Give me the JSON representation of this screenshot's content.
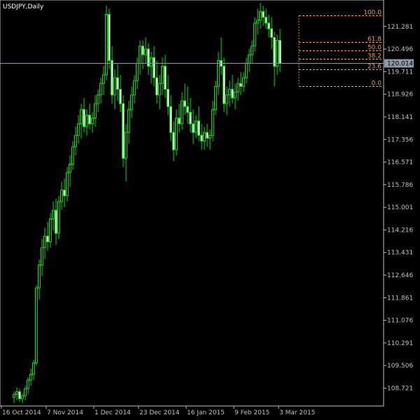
{
  "chart_data": {
    "type": "candlestick",
    "title": "USDJPY,Daily",
    "symbol": "USDJPY",
    "timeframe": "Daily",
    "ylim": [
      108.1,
      122.2
    ],
    "y_ticks": [
      "121.281",
      "120.496",
      "119.711",
      "118.926",
      "118.141",
      "117.356",
      "116.571",
      "115.786",
      "115.001",
      "114.216",
      "113.431",
      "112.646",
      "111.861",
      "111.076",
      "110.291",
      "109.506",
      "108.721"
    ],
    "x_ticks": [
      "16 Oct 2014",
      "7 Nov 2014",
      "1 Dec 2014",
      "23 Dec 2014",
      "16 Jan 2015",
      "9 Feb 2015",
      "3 Mar 2015"
    ],
    "current_price": "120.014",
    "fibonacci": {
      "levels": [
        {
          "label": "100.0",
          "value": 121.66
        },
        {
          "label": "61.8",
          "value": 120.73
        },
        {
          "label": "50.0",
          "value": 120.44
        },
        {
          "label": "38.2",
          "value": 120.15
        },
        {
          "label": "23.6",
          "value": 119.8
        },
        {
          "label": "0.0",
          "value": 119.22
        }
      ]
    },
    "ohlc": [
      [
        108.4,
        108.6,
        108.2,
        108.5
      ],
      [
        108.5,
        108.75,
        108.3,
        108.6
      ],
      [
        108.6,
        108.7,
        108.25,
        108.35
      ],
      [
        108.35,
        108.55,
        108.2,
        108.45
      ],
      [
        108.45,
        108.8,
        108.3,
        108.7
      ],
      [
        108.7,
        109.1,
        108.5,
        109.0
      ],
      [
        109.0,
        109.4,
        108.8,
        109.2
      ],
      [
        109.2,
        109.7,
        109.0,
        109.6
      ],
      [
        109.6,
        112.3,
        109.5,
        112.2
      ],
      [
        112.2,
        113.2,
        111.8,
        113.0
      ],
      [
        113.0,
        113.9,
        112.6,
        113.6
      ],
      [
        113.6,
        114.3,
        113.2,
        114.0
      ],
      [
        114.0,
        114.5,
        113.5,
        113.8
      ],
      [
        113.8,
        114.8,
        113.6,
        114.6
      ],
      [
        114.6,
        115.2,
        114.2,
        114.9
      ],
      [
        114.9,
        115.3,
        113.7,
        114.1
      ],
      [
        114.1,
        115.4,
        113.9,
        115.2
      ],
      [
        115.2,
        115.9,
        114.9,
        115.6
      ],
      [
        115.6,
        116.0,
        115.0,
        115.4
      ],
      [
        115.4,
        116.4,
        115.2,
        116.2
      ],
      [
        116.2,
        116.8,
        115.7,
        116.5
      ],
      [
        116.5,
        117.3,
        116.3,
        117.1
      ],
      [
        117.1,
        117.8,
        116.8,
        117.5
      ],
      [
        117.5,
        118.2,
        117.2,
        117.9
      ],
      [
        117.9,
        118.6,
        117.4,
        118.4
      ],
      [
        118.4,
        118.8,
        117.6,
        117.8
      ],
      [
        117.8,
        118.4,
        117.5,
        118.2
      ],
      [
        118.2,
        118.6,
        117.7,
        117.9
      ],
      [
        117.9,
        118.3,
        117.6,
        118.1
      ],
      [
        118.1,
        118.9,
        117.8,
        118.6
      ],
      [
        118.6,
        119.1,
        118.3,
        118.9
      ],
      [
        118.9,
        119.5,
        118.6,
        119.3
      ],
      [
        119.3,
        119.9,
        118.9,
        119.6
      ],
      [
        119.6,
        122.0,
        119.4,
        121.7
      ],
      [
        121.7,
        121.9,
        119.8,
        120.1
      ],
      [
        120.1,
        120.6,
        118.6,
        118.9
      ],
      [
        118.9,
        119.8,
        118.4,
        119.5
      ],
      [
        119.5,
        120.0,
        118.7,
        119.1
      ],
      [
        119.1,
        119.6,
        118.3,
        118.6
      ],
      [
        118.6,
        118.9,
        116.4,
        116.7
      ],
      [
        116.7,
        117.9,
        115.9,
        117.6
      ],
      [
        117.6,
        118.7,
        117.2,
        118.4
      ],
      [
        118.4,
        119.2,
        118.1,
        118.9
      ],
      [
        118.9,
        119.6,
        118.6,
        119.4
      ],
      [
        119.4,
        120.2,
        119.1,
        120.0
      ],
      [
        120.0,
        120.8,
        119.6,
        120.6
      ],
      [
        120.6,
        120.8,
        119.8,
        120.3
      ],
      [
        120.3,
        120.9,
        120.0,
        120.5
      ],
      [
        120.5,
        120.7,
        119.6,
        119.9
      ],
      [
        119.9,
        120.4,
        119.3,
        120.2
      ],
      [
        120.2,
        120.6,
        119.2,
        119.5
      ],
      [
        119.5,
        120.1,
        118.6,
        118.9
      ],
      [
        118.9,
        119.6,
        118.4,
        119.3
      ],
      [
        119.3,
        120.2,
        118.9,
        119.9
      ],
      [
        119.9,
        120.3,
        118.8,
        119.1
      ],
      [
        119.1,
        119.6,
        118.2,
        118.5
      ],
      [
        118.5,
        118.9,
        117.3,
        117.6
      ],
      [
        117.6,
        118.0,
        116.6,
        117.0
      ],
      [
        117.0,
        118.4,
        116.8,
        118.1
      ],
      [
        118.1,
        118.6,
        117.6,
        117.9
      ],
      [
        117.9,
        119.0,
        117.7,
        118.7
      ],
      [
        118.7,
        119.3,
        118.2,
        118.5
      ],
      [
        118.5,
        119.2,
        117.9,
        118.3
      ],
      [
        118.3,
        118.8,
        117.6,
        117.9
      ],
      [
        117.9,
        118.4,
        117.2,
        117.6
      ],
      [
        117.6,
        118.2,
        117.4,
        118.0
      ],
      [
        118.0,
        118.5,
        117.3,
        117.5
      ],
      [
        117.5,
        117.9,
        117.0,
        117.3
      ],
      [
        117.3,
        117.8,
        117.0,
        117.6
      ],
      [
        117.6,
        117.9,
        117.1,
        117.4
      ],
      [
        117.4,
        117.7,
        117.0,
        117.5
      ],
      [
        117.5,
        118.7,
        117.3,
        118.4
      ],
      [
        118.4,
        119.4,
        118.2,
        119.2
      ],
      [
        119.2,
        120.4,
        118.9,
        120.1
      ],
      [
        120.1,
        120.9,
        119.6,
        119.9
      ],
      [
        119.9,
        120.2,
        118.3,
        118.6
      ],
      [
        118.6,
        119.2,
        118.2,
        118.9
      ],
      [
        118.9,
        119.4,
        118.5,
        119.1
      ],
      [
        119.1,
        119.6,
        118.6,
        118.8
      ],
      [
        118.8,
        119.3,
        118.4,
        119.0
      ],
      [
        119.0,
        119.5,
        118.7,
        119.3
      ],
      [
        119.3,
        119.7,
        118.9,
        119.2
      ],
      [
        119.2,
        119.7,
        119.0,
        119.5
      ],
      [
        119.5,
        120.2,
        119.3,
        120.0
      ],
      [
        120.0,
        120.5,
        119.7,
        120.3
      ],
      [
        120.3,
        120.8,
        120.0,
        120.6
      ],
      [
        120.6,
        121.6,
        120.4,
        121.4
      ],
      [
        121.4,
        121.9,
        121.0,
        121.5
      ],
      [
        121.5,
        122.1,
        121.2,
        121.8
      ],
      [
        121.8,
        122.0,
        121.3,
        121.6
      ],
      [
        121.6,
        121.9,
        121.2,
        121.4
      ],
      [
        121.4,
        121.7,
        120.9,
        121.2
      ],
      [
        121.2,
        121.6,
        120.5,
        120.9
      ],
      [
        120.9,
        121.1,
        119.2,
        119.9
      ],
      [
        119.9,
        121.0,
        119.6,
        120.8
      ],
      [
        120.8,
        121.2,
        119.7,
        120.0
      ]
    ]
  }
}
